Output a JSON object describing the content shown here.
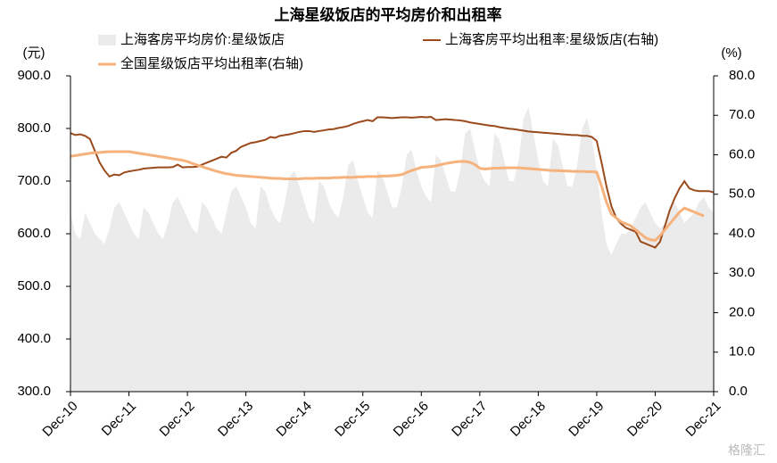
{
  "chart_data": {
    "type": "line",
    "title": "上海星级饭店的平均房价和出租率",
    "y_label": "(元)",
    "y2_label": "(%)",
    "watermark": "格隆汇",
    "categories": [
      "Dec-10",
      null,
      null,
      null,
      null,
      null,
      null,
      null,
      null,
      null,
      null,
      null,
      "Dec-11",
      null,
      null,
      null,
      null,
      null,
      null,
      null,
      null,
      null,
      null,
      null,
      "Dec-12",
      null,
      null,
      null,
      null,
      null,
      null,
      null,
      null,
      null,
      null,
      null,
      "Dec-13",
      null,
      null,
      null,
      null,
      null,
      null,
      null,
      null,
      null,
      null,
      null,
      "Dec-14",
      null,
      null,
      null,
      null,
      null,
      null,
      null,
      null,
      null,
      null,
      null,
      "Dec-15",
      null,
      null,
      null,
      null,
      null,
      null,
      null,
      null,
      null,
      null,
      null,
      "Dec-16",
      null,
      null,
      null,
      null,
      null,
      null,
      null,
      null,
      null,
      null,
      null,
      "Dec-17",
      null,
      null,
      null,
      null,
      null,
      null,
      null,
      null,
      null,
      null,
      null,
      "Dec-18",
      null,
      null,
      null,
      null,
      null,
      null,
      null,
      null,
      null,
      null,
      null,
      "Dec-19",
      null,
      null,
      null,
      null,
      null,
      null,
      null,
      null,
      null,
      null,
      null,
      "Dec-20",
      null,
      null,
      null,
      null,
      null,
      null,
      null,
      null,
      null,
      null,
      null,
      "Dec-21"
    ],
    "ylim": [
      300,
      900
    ],
    "yticks": [
      {
        "value": 300,
        "label": "300.0"
      },
      {
        "value": 400,
        "label": "400.0"
      },
      {
        "value": 500,
        "label": "500.0"
      },
      {
        "value": 600,
        "label": "600.0"
      },
      {
        "value": 700,
        "label": "700.0"
      },
      {
        "value": 800,
        "label": "800.0"
      },
      {
        "value": 900,
        "label": "900.0"
      }
    ],
    "y2lim": [
      0,
      80
    ],
    "y2ticks": [
      {
        "value": 0,
        "label": "0.0"
      },
      {
        "value": 10,
        "label": "10.0"
      },
      {
        "value": 20,
        "label": "20.0"
      },
      {
        "value": 30,
        "label": "30.0"
      },
      {
        "value": 40,
        "label": "40.0"
      },
      {
        "value": 50,
        "label": "50.0"
      },
      {
        "value": 60,
        "label": "60.0"
      },
      {
        "value": 70,
        "label": "70.0"
      },
      {
        "value": 80,
        "label": "80.0"
      }
    ],
    "series": [
      {
        "name": "上海客房平均房价:星级饭店",
        "type": "area",
        "color": "#ebebeb",
        "axis": "y",
        "values": [
          640,
          600,
          590,
          640,
          620,
          600,
          590,
          580,
          610,
          650,
          660,
          640,
          620,
          600,
          590,
          650,
          640,
          620,
          600,
          590,
          620,
          660,
          670,
          650,
          630,
          610,
          600,
          660,
          650,
          630,
          610,
          600,
          640,
          680,
          690,
          670,
          650,
          620,
          610,
          690,
          680,
          650,
          630,
          620,
          660,
          710,
          720,
          690,
          660,
          630,
          620,
          700,
          690,
          660,
          640,
          630,
          670,
          730,
          740,
          700,
          670,
          640,
          630,
          720,
          710,
          680,
          650,
          650,
          690,
          750,
          760,
          720,
          690,
          670,
          660,
          750,
          740,
          710,
          680,
          680,
          720,
          790,
          800,
          760,
          720,
          700,
          690,
          790,
          780,
          740,
          700,
          700,
          740,
          820,
          840,
          790,
          740,
          700,
          690,
          780,
          770,
          730,
          690,
          690,
          730,
          800,
          820,
          780,
          720,
          640,
          580,
          560,
          580,
          600,
          600,
          610,
          630,
          650,
          660,
          640,
          620,
          610,
          620,
          650,
          660,
          640,
          620,
          630,
          640,
          660,
          670,
          650,
          640
        ]
      },
      {
        "name": "上海客房平均出租率:星级饭店(右轴)",
        "type": "line",
        "color": "#9a4a1c",
        "axis": "y2",
        "values": [
          65.5,
          65,
          65.2,
          64.8,
          64,
          61,
          58,
          56,
          54.5,
          55,
          54.8,
          55.5,
          55.8,
          56,
          56.2,
          56.5,
          56.6,
          56.7,
          56.8,
          56.8,
          56.8,
          56.9,
          57.5,
          56.8,
          56.9,
          56.9,
          57,
          57.5,
          58,
          58.5,
          59,
          59.5,
          59.3,
          60.5,
          61,
          62,
          62.5,
          63,
          63.2,
          63.5,
          63.8,
          64.5,
          64.3,
          64.8,
          65,
          65.2,
          65.5,
          65.8,
          66,
          66,
          65.8,
          66,
          66.2,
          66.4,
          66.5,
          66.8,
          67,
          67.3,
          67.8,
          68.2,
          68.5,
          68.8,
          68.5,
          69.5,
          69.5,
          69.4,
          69.3,
          69.4,
          69.5,
          69.5,
          69.4,
          69.5,
          69.6,
          69.5,
          69.6,
          68.8,
          68.9,
          69,
          68.9,
          68.8,
          68.7,
          68.5,
          68.2,
          68,
          67.8,
          67.6,
          67.4,
          67.3,
          67,
          66.8,
          66.6,
          66.5,
          66.3,
          66.1,
          65.9,
          65.8,
          65.7,
          65.6,
          65.5,
          65.4,
          65.3,
          65.2,
          65.1,
          65,
          65,
          64.8,
          64.8,
          64.5,
          63.5,
          58,
          52,
          47,
          44,
          42.5,
          41.5,
          41,
          40.5,
          38,
          37.5,
          37,
          36.5,
          38,
          42,
          46,
          49,
          51.5,
          53.3,
          51.5,
          51,
          50.8,
          50.8,
          50.8,
          50.5
        ]
      },
      {
        "name": "全国星级饭店平均出租率(右轴)",
        "type": "line",
        "color": "#f6b27c",
        "axis": "y2",
        "values": [
          59.6,
          59.8,
          60,
          60.2,
          60.4,
          60.5,
          60.6,
          60.7,
          60.8,
          60.8,
          60.8,
          60.8,
          60.8,
          60.6,
          60.4,
          60.2,
          60,
          59.8,
          59.6,
          59.4,
          59.2,
          59,
          58.8,
          58.6,
          58.3,
          57.8,
          57.4,
          57,
          56.6,
          56.2,
          55.8,
          55.5,
          55.2,
          55,
          54.8,
          54.7,
          54.6,
          54.5,
          54.4,
          54.3,
          54.2,
          54.1,
          54,
          54,
          53.9,
          53.9,
          53.9,
          53.9,
          54,
          54,
          54,
          54.1,
          54.1,
          54.1,
          54.2,
          54.2,
          54.3,
          54.3,
          54.3,
          54.4,
          54.4,
          54.5,
          54.5,
          54.5,
          54.6,
          54.6,
          54.7,
          54.8,
          55,
          55.5,
          56,
          56.4,
          56.8,
          56.9,
          57,
          57.2,
          57.5,
          57.8,
          58,
          58.2,
          58.3,
          58.3,
          58.1,
          57.5,
          56.6,
          56.4,
          56.5,
          56.6,
          56.6,
          56.7,
          56.7,
          56.7,
          56.7,
          56.6,
          56.5,
          56.4,
          56.3,
          56.2,
          56.1,
          56,
          56,
          55.9,
          55.9,
          55.8,
          55.8,
          55.8,
          55.7,
          55.7,
          55.6,
          52,
          48,
          45,
          44,
          43,
          42.5,
          42,
          41,
          40,
          39,
          38.5,
          38.3,
          39.5,
          41,
          42.5,
          44,
          45.5,
          46.5,
          46,
          45.5,
          45,
          44.5,
          null,
          null
        ]
      }
    ]
  }
}
